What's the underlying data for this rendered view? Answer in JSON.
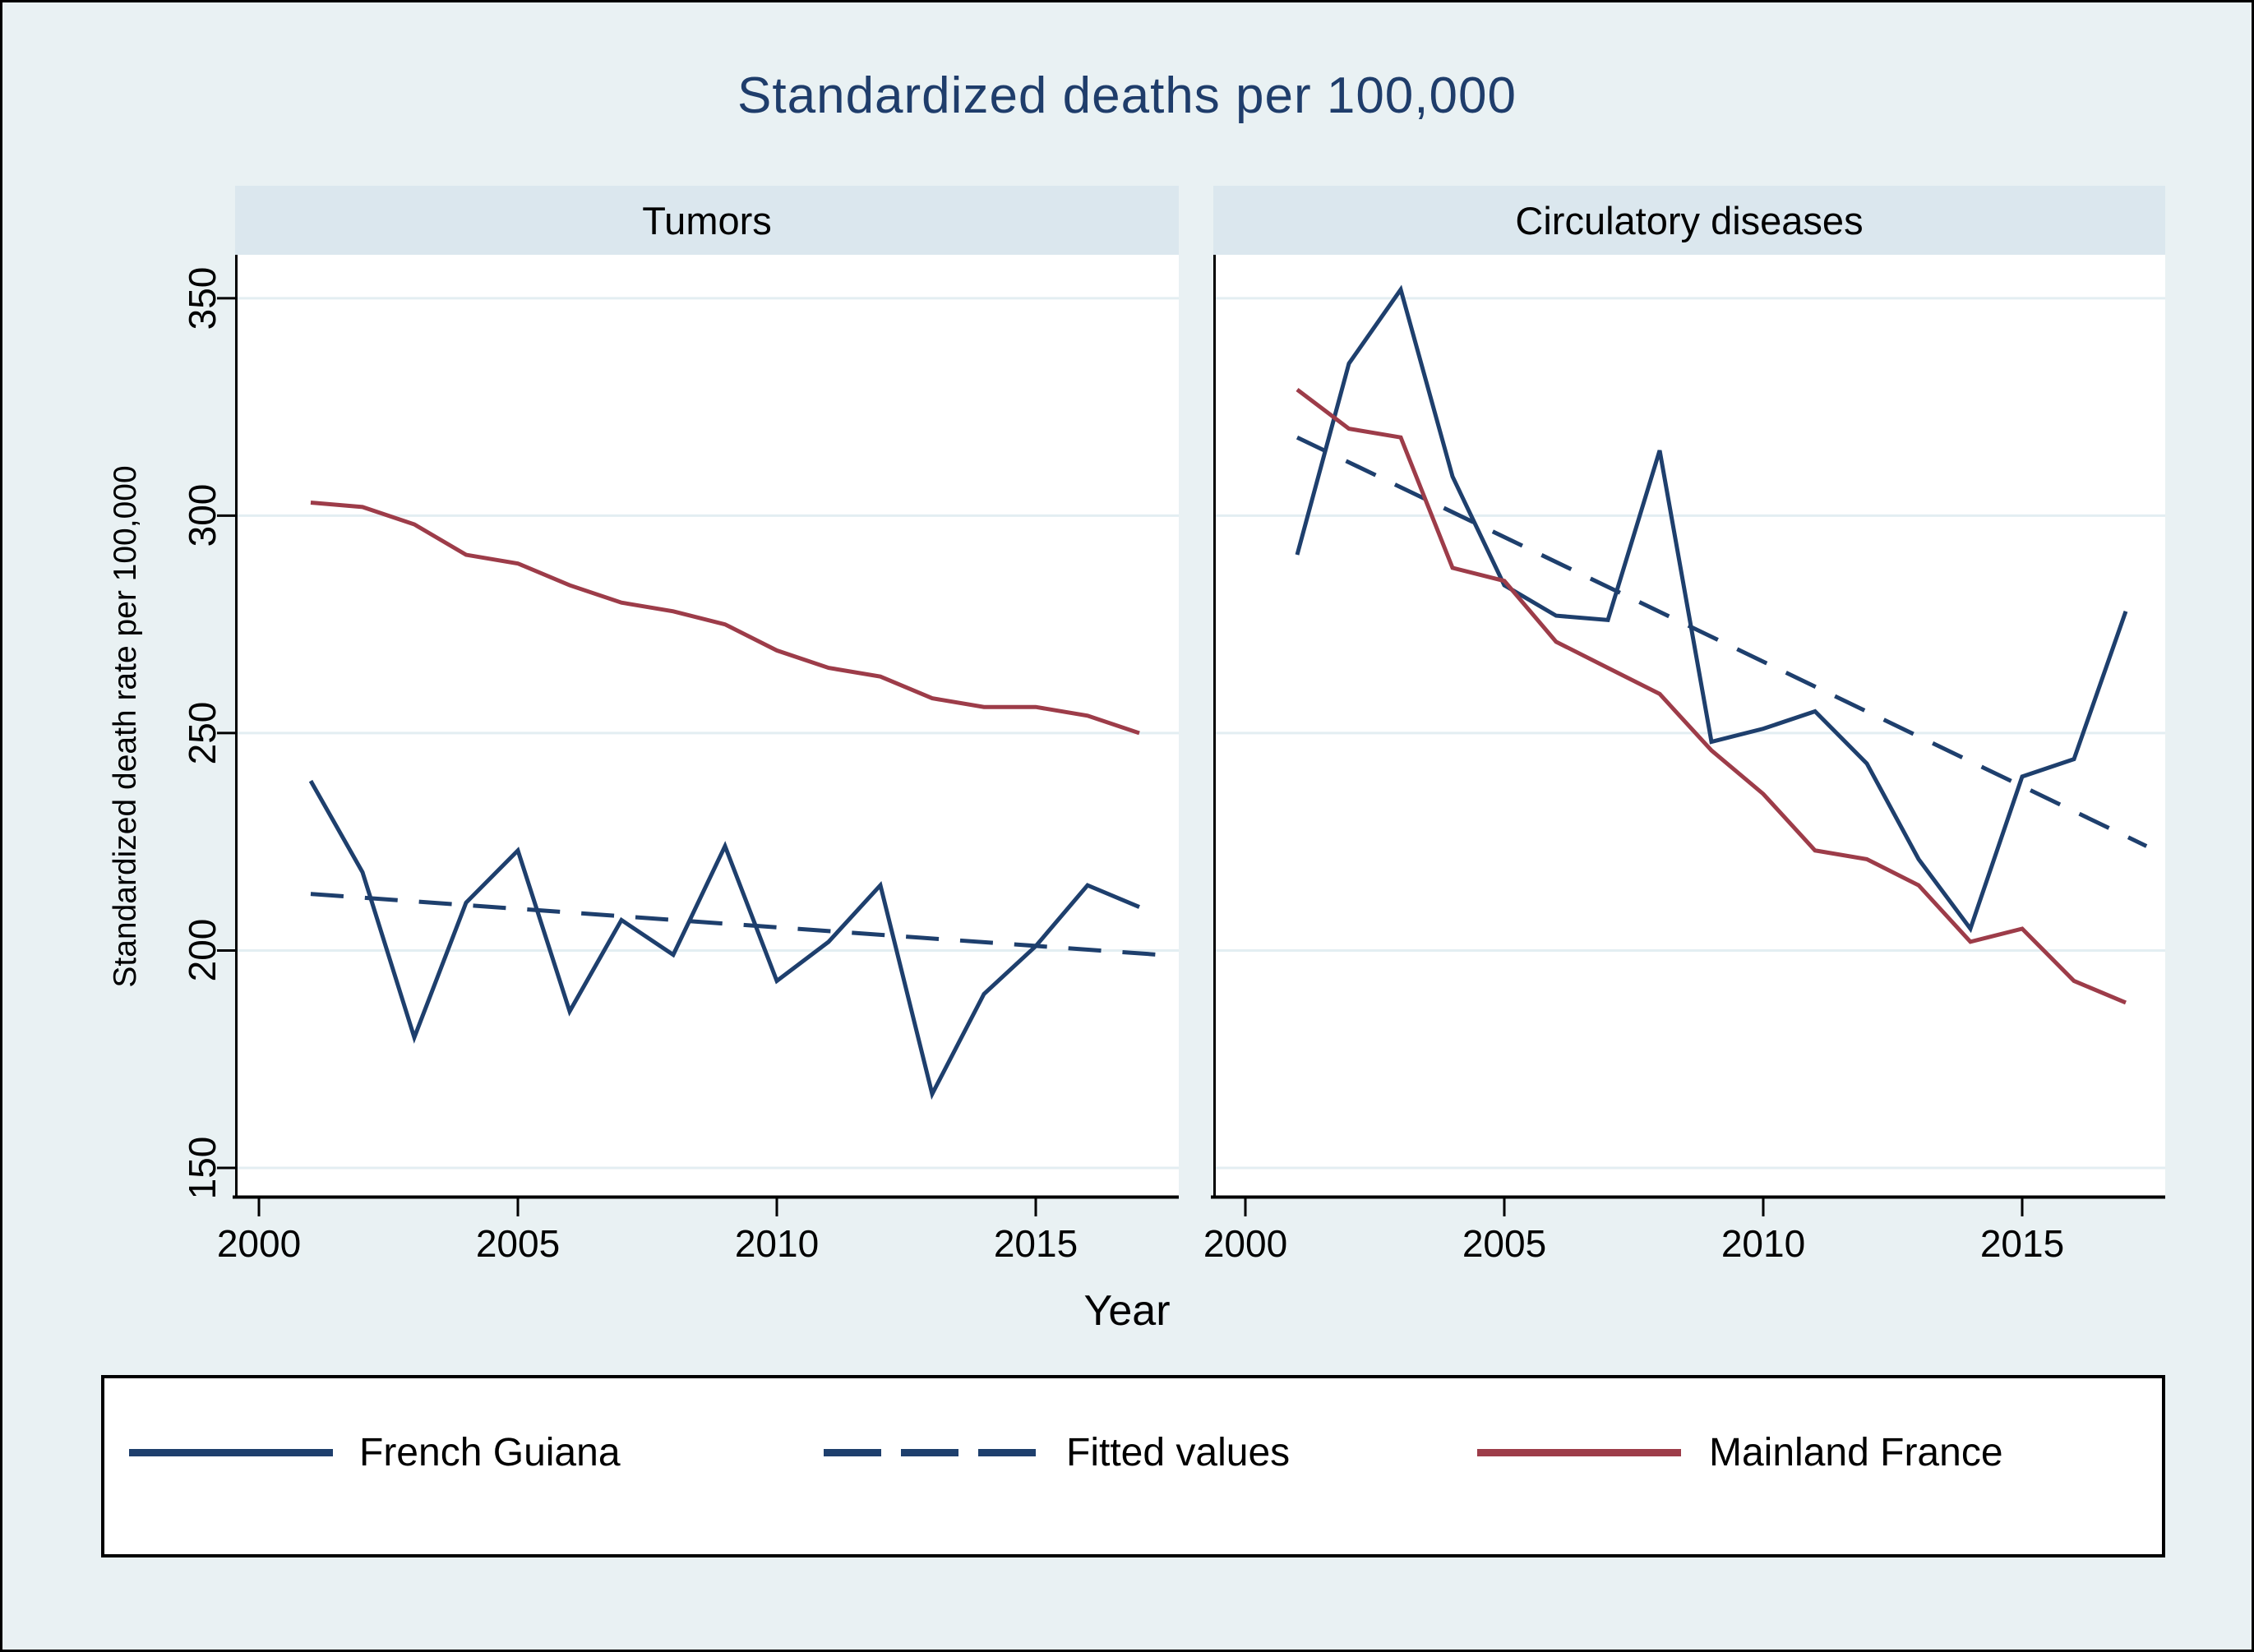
{
  "title": "Standardized deaths per 100,000",
  "axes": {
    "y_title": "Standardized death rate per 100,000",
    "x_title": "Year"
  },
  "panels": [
    {
      "title": "Tumors"
    },
    {
      "title": "Circulatory diseases"
    }
  ],
  "legend": {
    "items": [
      {
        "label": "French Guiana",
        "style": "solid",
        "color": "#1E3F6D"
      },
      {
        "label": "Fitted values",
        "style": "dashed",
        "color": "#1E3F6D"
      },
      {
        "label": "Mainland France",
        "style": "solid",
        "color": "#9D3C49"
      }
    ]
  },
  "colors": {
    "background": "#E9F1F3",
    "panel_band": "#DBE7EE",
    "plot_bg": "#FFFFFF",
    "gridline": "#E3EEF2",
    "axis": "#000000",
    "navy": "#1E3F6D",
    "maroon": "#9D3C49",
    "title_text": "#1F3D6B"
  },
  "chart_data": [
    {
      "type": "line",
      "title": "Tumors",
      "xlabel": "Year",
      "ylabel": "Standardized death rate per 100,000",
      "xlim": [
        1999.54,
        2017.76
      ],
      "ylim": [
        143,
        360
      ],
      "x_ticks": [
        2000,
        2005,
        2010,
        2015
      ],
      "y_gridlines": [
        150,
        200,
        250,
        300,
        350
      ],
      "grid": true,
      "legend_position": "bottom",
      "series": [
        {
          "name": "French Guiana",
          "color": "#1E3F6D",
          "dash": false,
          "x": [
            2001,
            2002,
            2003,
            2004,
            2005,
            2006,
            2007,
            2008,
            2009,
            2010,
            2011,
            2012,
            2013,
            2014,
            2015,
            2016,
            2017
          ],
          "values": [
            239,
            218,
            180,
            211,
            223,
            186,
            207,
            199,
            224,
            193,
            202,
            215,
            167,
            190,
            201,
            215,
            210
          ]
        },
        {
          "name": "Fitted values",
          "color": "#1E3F6D",
          "dash": true,
          "x": [
            2001,
            2017.4
          ],
          "values": [
            213,
            199
          ]
        },
        {
          "name": "Mainland France",
          "color": "#9D3C49",
          "dash": false,
          "x": [
            2001,
            2002,
            2003,
            2004,
            2005,
            2006,
            2007,
            2008,
            2009,
            2010,
            2011,
            2012,
            2013,
            2014,
            2015,
            2016,
            2017
          ],
          "values": [
            303,
            302,
            298,
            291,
            289,
            284,
            280,
            278,
            275,
            269,
            265,
            263,
            258,
            256,
            256,
            254,
            250
          ]
        }
      ]
    },
    {
      "type": "line",
      "title": "Circulatory diseases",
      "xlabel": "Year",
      "ylabel": "Standardized death rate per 100,000",
      "xlim": [
        1999.38,
        2017.76
      ],
      "ylim": [
        143,
        360
      ],
      "x_ticks": [
        2000,
        2005,
        2010,
        2015
      ],
      "y_gridlines": [
        150,
        200,
        250,
        300,
        350
      ],
      "grid": true,
      "legend_position": "bottom",
      "series": [
        {
          "name": "French Guiana",
          "color": "#1E3F6D",
          "dash": false,
          "x": [
            2001,
            2002,
            2003,
            2004,
            2005,
            2006,
            2007,
            2008,
            2009,
            2010,
            2011,
            2012,
            2013,
            2014,
            2015,
            2016,
            2017
          ],
          "values": [
            291,
            335,
            352,
            309,
            284,
            277,
            276,
            315,
            248,
            251,
            255,
            243,
            221,
            205,
            240,
            244,
            278
          ]
        },
        {
          "name": "Fitted values",
          "color": "#1E3F6D",
          "dash": true,
          "x": [
            2001,
            2017.4
          ],
          "values": [
            318,
            224
          ]
        },
        {
          "name": "Mainland France",
          "color": "#9D3C49",
          "dash": false,
          "x": [
            2001,
            2002,
            2003,
            2004,
            2005,
            2006,
            2007,
            2008,
            2009,
            2010,
            2011,
            2012,
            2013,
            2014,
            2015,
            2016,
            2017
          ],
          "values": [
            329,
            320,
            318,
            288,
            285,
            271,
            265,
            259,
            246,
            236,
            223,
            221,
            215,
            202,
            205,
            193,
            188
          ]
        }
      ]
    }
  ]
}
